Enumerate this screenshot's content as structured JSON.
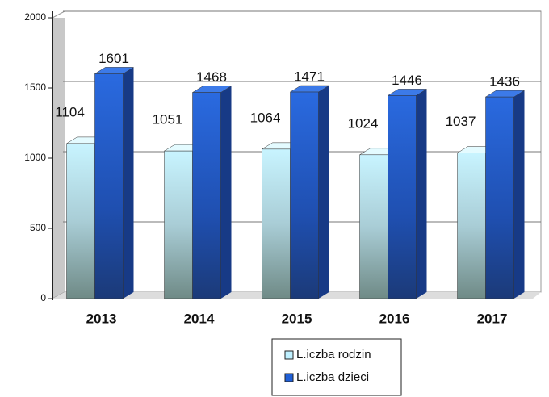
{
  "chart_data": {
    "type": "bar3d",
    "categories": [
      "2013",
      "2014",
      "2015",
      "2016",
      "2017"
    ],
    "series": [
      {
        "name": "L.iczba rodzin",
        "color": "#bff0ff",
        "values": [
          1104,
          1051,
          1064,
          1024,
          1037
        ]
      },
      {
        "name": "L.iczba dzieci",
        "color": "#1f5fd6",
        "values": [
          1601,
          1468,
          1471,
          1446,
          1436
        ]
      }
    ],
    "ylim": [
      0,
      2000
    ],
    "yticks": [
      0,
      500,
      1000,
      1500,
      2000
    ],
    "grid": true,
    "legend": "bottom"
  }
}
